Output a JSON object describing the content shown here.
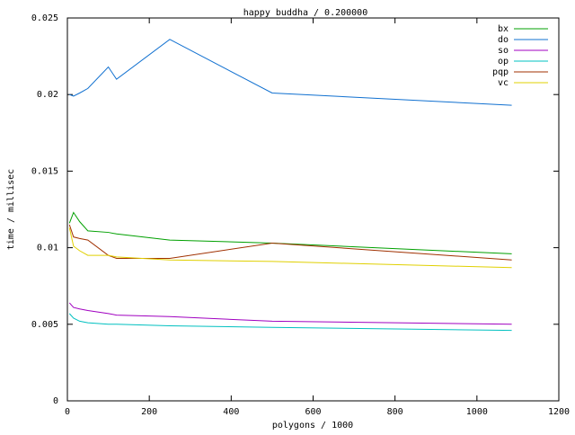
{
  "chart_data": {
    "type": "line",
    "title": "happy buddha / 0.200000",
    "x_label": "polygons / 1000",
    "y_label": "time / millisec",
    "x": [
      5,
      15,
      30,
      50,
      100,
      120,
      250,
      500,
      1085
    ],
    "series": [
      {
        "name": "bx",
        "color": "#00a000",
        "values": [
          0.0116,
          0.0123,
          0.0117,
          0.0111,
          0.011,
          0.0109,
          0.0105,
          0.0103,
          0.0096
        ]
      },
      {
        "name": "do",
        "color": "#1070d0",
        "values": [
          0.02,
          0.0199,
          0.0201,
          0.0204,
          0.0218,
          0.021,
          0.0236,
          0.0201,
          0.0193
        ]
      },
      {
        "name": "so",
        "color": "#a000c0",
        "values": [
          0.0064,
          0.0061,
          0.006,
          0.0059,
          0.0057,
          0.0056,
          0.0055,
          0.0052,
          0.005
        ]
      },
      {
        "name": "op",
        "color": "#00c0c0",
        "values": [
          0.0057,
          0.0054,
          0.0052,
          0.0051,
          0.005,
          0.005,
          0.0049,
          0.0048,
          0.0046
        ]
      },
      {
        "name": "pqp",
        "color": "#a03000",
        "values": [
          0.0115,
          0.0107,
          0.0106,
          0.0105,
          0.0095,
          0.0093,
          0.0093,
          0.0103,
          0.0092
        ]
      },
      {
        "name": "vc",
        "color": "#e0d000",
        "values": [
          0.0113,
          0.0101,
          0.0098,
          0.0095,
          0.0095,
          0.0094,
          0.0092,
          0.0091,
          0.0087
        ]
      }
    ],
    "xlim": [
      0,
      1200
    ],
    "xticks": [
      0,
      200,
      400,
      600,
      800,
      1000,
      1200
    ],
    "ylim": [
      0,
      0.025
    ],
    "yticks": [
      0,
      0.005,
      0.01,
      0.015,
      0.02,
      0.025
    ],
    "legend": "top-right"
  }
}
